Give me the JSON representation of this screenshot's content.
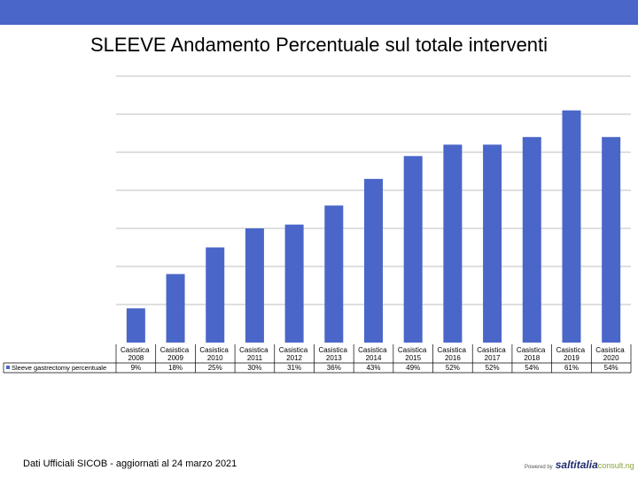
{
  "title": "SLEEVE Andamento Percentuale sul totale interventi",
  "footer": "Dati Ufficiali SICOB - aggiornati al 24 marzo 2021",
  "logo": {
    "prefix": "Powered by",
    "brand": "saltitalia",
    "suffix": "consult.ng"
  },
  "colors": {
    "bar": "#4a66c8",
    "topbar": "#4a66c8",
    "grid": "#bfbfbf",
    "table_line": "#000000"
  },
  "chart_data": {
    "type": "bar",
    "categories": [
      "Casistica 2008",
      "Casistica 2009",
      "Casistica 2010",
      "Casistica 2011",
      "Casistica 2012",
      "Casistica 2013",
      "Casistica 2014",
      "Casistica 2015",
      "Casistica 2016",
      "Casistica 2017",
      "Casistica 2018",
      "Casistica 2019",
      "Casistica 2020"
    ],
    "series": [
      {
        "name": "Sleeve gastrectomy percentuale",
        "values": [
          9,
          18,
          25,
          30,
          31,
          36,
          43,
          49,
          52,
          52,
          54,
          61,
          54
        ],
        "labels": [
          "9%",
          "18%",
          "25%",
          "30%",
          "31%",
          "36%",
          "43%",
          "49%",
          "52%",
          "52%",
          "54%",
          "61%",
          "54%"
        ]
      }
    ],
    "ylim": [
      0,
      70
    ],
    "grid": true,
    "legend": "left-of-table",
    "data_table": true
  }
}
